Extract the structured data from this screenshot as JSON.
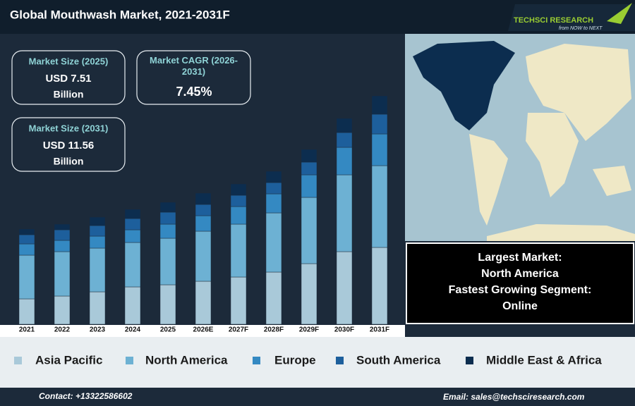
{
  "header": {
    "title": "Global Mouthwash Market, 2021-2031F",
    "logo": "TECHSCI RESEARCH",
    "tagline": "from NOW to NEXT"
  },
  "kpis": [
    {
      "label": "Market Size (2025)",
      "value": "USD 7.51",
      "unit": "Billion"
    },
    {
      "label": "Market CAGR (2026-2031)",
      "value": "7.45%"
    },
    {
      "label": "Market Size (2031)",
      "value": "USD 11.56",
      "unit": "Billion"
    }
  ],
  "callout": [
    "Largest Market:",
    "North America",
    "Fastest Growing Segment:",
    "Online"
  ],
  "footer": {
    "contact": "Contact: +13322586602",
    "email": "Email: sales@techsciresearch.com"
  },
  "chart_data": {
    "type": "stacked-bar",
    "categories": [
      "2021",
      "2022",
      "2023",
      "2024",
      "2025",
      "2026E",
      "2027F",
      "2028F",
      "2029F",
      "2030F",
      "2031F"
    ],
    "ylim": [
      0,
      340
    ],
    "series": [
      {
        "name": "Asia Pacific",
        "color": "#a9c9d9",
        "values": [
          36,
          40,
          46,
          53,
          56,
          61,
          67,
          74,
          86,
          103,
          109
        ]
      },
      {
        "name": "North America",
        "color": "#6db1d3",
        "values": [
          62,
          63,
          62,
          63,
          66,
          71,
          75,
          84,
          94,
          109,
          116
        ]
      },
      {
        "name": "Europe",
        "color": "#3489c2",
        "values": [
          16,
          16,
          17,
          18,
          20,
          22,
          25,
          27,
          32,
          39,
          45
        ]
      },
      {
        "name": "South America",
        "color": "#1d5f9c",
        "values": [
          13,
          15,
          15,
          16,
          17,
          16,
          16,
          16,
          18,
          21,
          28
        ]
      },
      {
        "name": "Middle East & Africa",
        "color": "#0c2d4f",
        "values": [
          8,
          8,
          12,
          13,
          14,
          16,
          16,
          16,
          18,
          20,
          26
        ]
      }
    ]
  }
}
